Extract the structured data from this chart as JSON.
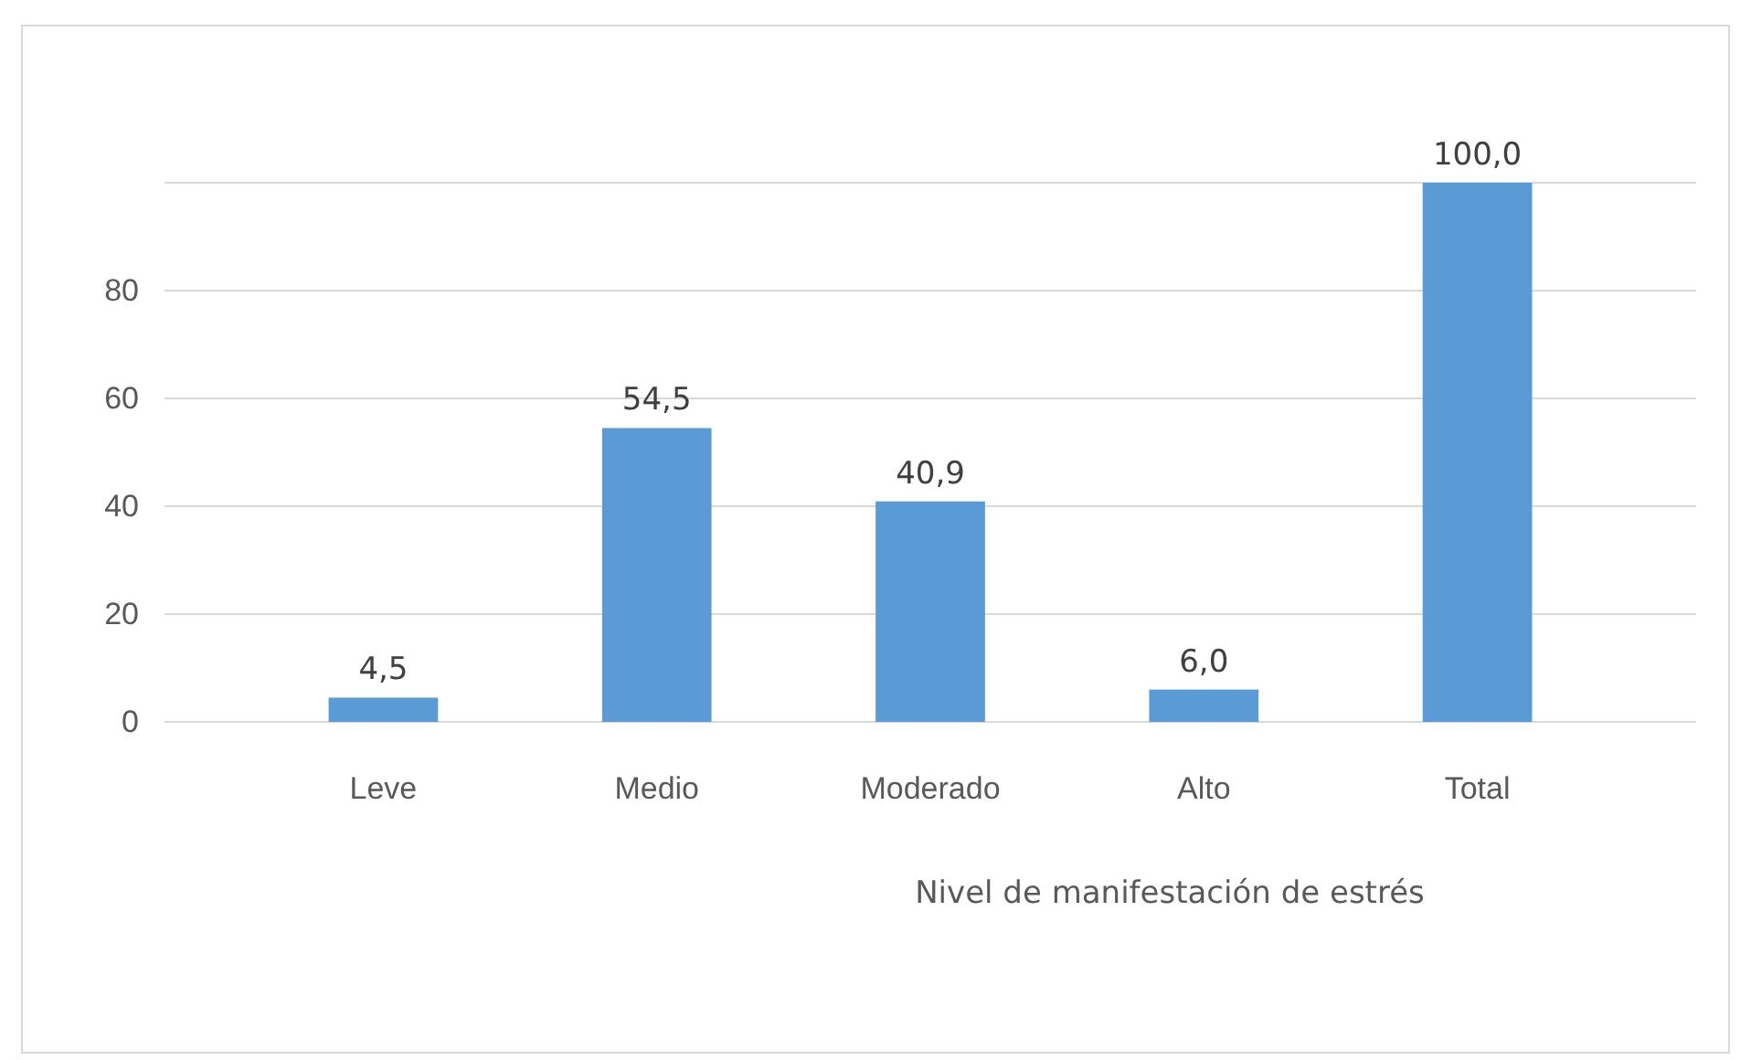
{
  "chart_data": {
    "type": "bar",
    "categories": [
      "Leve",
      "Medio",
      "Moderado",
      "Alto",
      "Total"
    ],
    "values": [
      4.5,
      54.5,
      40.9,
      6.0,
      100.0
    ],
    "value_labels": [
      "4,5",
      "54,5",
      "40,9",
      "6,0",
      "100,0"
    ],
    "color": "#5b9bd5",
    "xlabel": "Nivel de manifestación de estrés",
    "ylim": [
      0,
      100
    ],
    "yticks": [
      0,
      20,
      40,
      60,
      80,
      {
        "value": 100,
        "label": null
      }
    ],
    "grid": "y"
  }
}
